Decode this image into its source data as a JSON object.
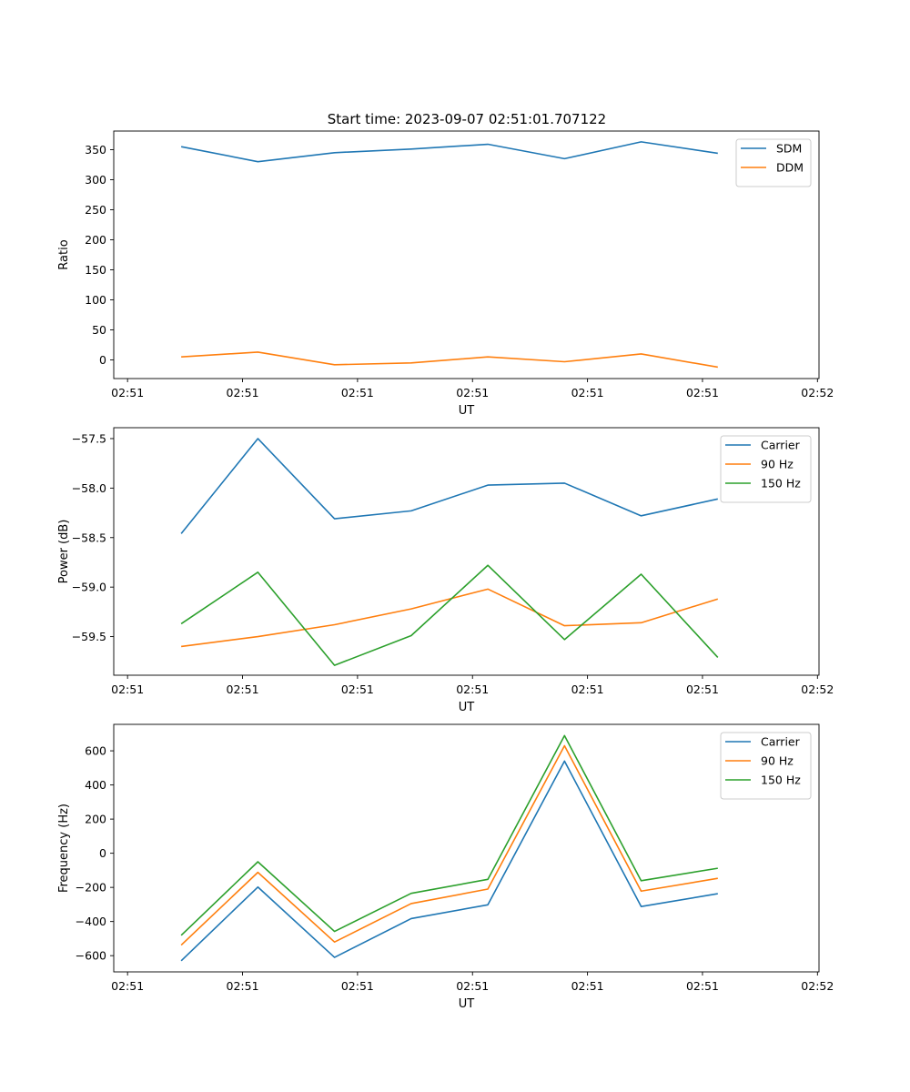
{
  "figure": {
    "title": "Start time: 2023-09-07 02:51:01.707122",
    "colors": {
      "c0": "#1f77b4",
      "c1": "#ff7f0e",
      "c2": "#2ca02c"
    }
  },
  "chart_data": [
    {
      "type": "line",
      "title": "Start time: 2023-09-07 02:51:01.707122",
      "xlabel": "UT",
      "ylabel": "Ratio",
      "x": [
        1,
        2,
        3,
        4,
        5,
        6,
        7,
        8
      ],
      "x_tick_values": [
        0.3,
        1.8,
        3.3,
        4.8,
        6.3,
        7.8,
        9.3
      ],
      "x_tick_labels": [
        "02:51",
        "02:51",
        "02:51",
        "02:51",
        "02:51",
        "02:51",
        "02:52"
      ],
      "xlim": [
        0.12,
        9.32
      ],
      "ylim": [
        -31,
        381
      ],
      "yticks": [
        0,
        50,
        100,
        150,
        200,
        250,
        300,
        350
      ],
      "legend_position": "top-right",
      "series": [
        {
          "name": "SDM",
          "color": "#1f77b4",
          "values": [
            355,
            330,
            345,
            351,
            359,
            335,
            363,
            344
          ]
        },
        {
          "name": "DDM",
          "color": "#ff7f0e",
          "values": [
            5,
            13,
            -8,
            -5,
            5,
            -3,
            10,
            -12
          ]
        }
      ]
    },
    {
      "type": "line",
      "title": "",
      "xlabel": "UT",
      "ylabel": "Power (dB)",
      "x": [
        1,
        2,
        3,
        4,
        5,
        6,
        7,
        8
      ],
      "x_tick_values": [
        0.3,
        1.8,
        3.3,
        4.8,
        6.3,
        7.8,
        9.3
      ],
      "x_tick_labels": [
        "02:51",
        "02:51",
        "02:51",
        "02:51",
        "02:51",
        "02:51",
        "02:52"
      ],
      "xlim": [
        0.12,
        9.32
      ],
      "ylim": [
        -59.89,
        -57.39
      ],
      "yticks": [
        -59.5,
        -59.0,
        -58.5,
        -58.0,
        -57.5
      ],
      "ytick_labels": [
        "−59.5",
        "−59.0",
        "−58.5",
        "−58.0",
        "−57.5"
      ],
      "legend_position": "top-right",
      "series": [
        {
          "name": "Carrier",
          "color": "#1f77b4",
          "values": [
            -58.46,
            -57.5,
            -58.31,
            -58.23,
            -57.97,
            -57.95,
            -58.28,
            -58.11
          ]
        },
        {
          "name": "90 Hz",
          "color": "#ff7f0e",
          "values": [
            -59.6,
            -59.5,
            -59.38,
            -59.22,
            -59.02,
            -59.39,
            -59.36,
            -59.12
          ]
        },
        {
          "name": "150 Hz",
          "color": "#2ca02c",
          "values": [
            -59.37,
            -58.85,
            -59.79,
            -59.49,
            -58.78,
            -59.53,
            -58.87,
            -59.71
          ]
        }
      ]
    },
    {
      "type": "line",
      "title": "",
      "xlabel": "UT",
      "ylabel": "Frequency (Hz)",
      "x": [
        1,
        2,
        3,
        4,
        5,
        6,
        7,
        8
      ],
      "x_tick_values": [
        0.3,
        1.8,
        3.3,
        4.8,
        6.3,
        7.8,
        9.3
      ],
      "x_tick_labels": [
        "02:51",
        "02:51",
        "02:51",
        "02:51",
        "02:51",
        "02:51",
        "02:52"
      ],
      "xlim": [
        0.12,
        9.32
      ],
      "ylim": [
        -695,
        755
      ],
      "yticks": [
        -600,
        -400,
        -200,
        0,
        200,
        400,
        600
      ],
      "ytick_labels": [
        "−600",
        "−400",
        "−200",
        "0",
        "200",
        "400",
        "600"
      ],
      "legend_position": "top-right",
      "series": [
        {
          "name": "Carrier",
          "color": "#1f77b4",
          "values": [
            -630,
            -198,
            -610,
            -383,
            -302,
            540,
            -312,
            -237
          ]
        },
        {
          "name": "90 Hz",
          "color": "#ff7f0e",
          "values": [
            -538,
            -112,
            -520,
            -295,
            -210,
            630,
            -222,
            -147
          ]
        },
        {
          "name": "150 Hz",
          "color": "#2ca02c",
          "values": [
            -481,
            -50,
            -458,
            -235,
            -153,
            689,
            -161,
            -88
          ]
        }
      ]
    }
  ]
}
